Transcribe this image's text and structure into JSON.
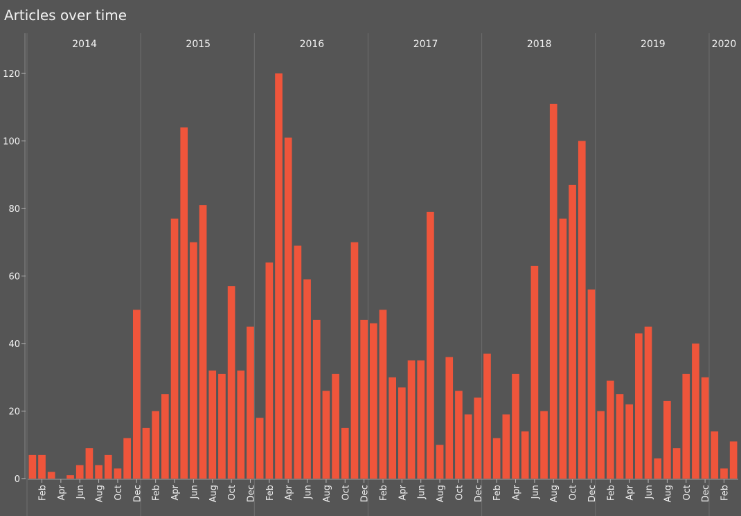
{
  "chart_data": {
    "type": "bar",
    "title": "Articles over time",
    "xlabel": "",
    "ylabel": "",
    "ylim": [
      0,
      130
    ],
    "y_ticks": [
      0,
      20,
      40,
      60,
      80,
      100,
      120
    ],
    "grid": false,
    "legend": "none",
    "bar_color": "#ef553b",
    "background": "#555555",
    "years": [
      "2014",
      "2015",
      "2016",
      "2017",
      "2018",
      "2019",
      "2020"
    ],
    "month_tick_labels": [
      "Feb",
      "Apr",
      "Jun",
      "Aug",
      "Oct",
      "Dec"
    ],
    "series": [
      {
        "values": [
          7,
          7,
          2,
          0,
          1,
          4,
          9,
          4,
          7,
          3,
          12,
          50,
          15,
          20,
          25,
          77,
          104,
          70,
          81,
          32,
          31,
          57,
          32,
          45,
          18,
          64,
          120,
          101,
          69,
          59,
          47,
          26,
          31,
          15,
          70,
          47,
          46,
          50,
          30,
          27,
          35,
          35,
          79,
          10,
          36,
          26,
          19,
          24,
          37,
          12,
          19,
          31,
          14,
          63,
          20,
          111,
          77,
          87,
          100,
          56,
          20,
          29,
          25,
          22,
          43,
          45,
          6,
          23,
          9,
          31,
          40,
          30,
          14,
          3,
          11
        ]
      }
    ]
  }
}
